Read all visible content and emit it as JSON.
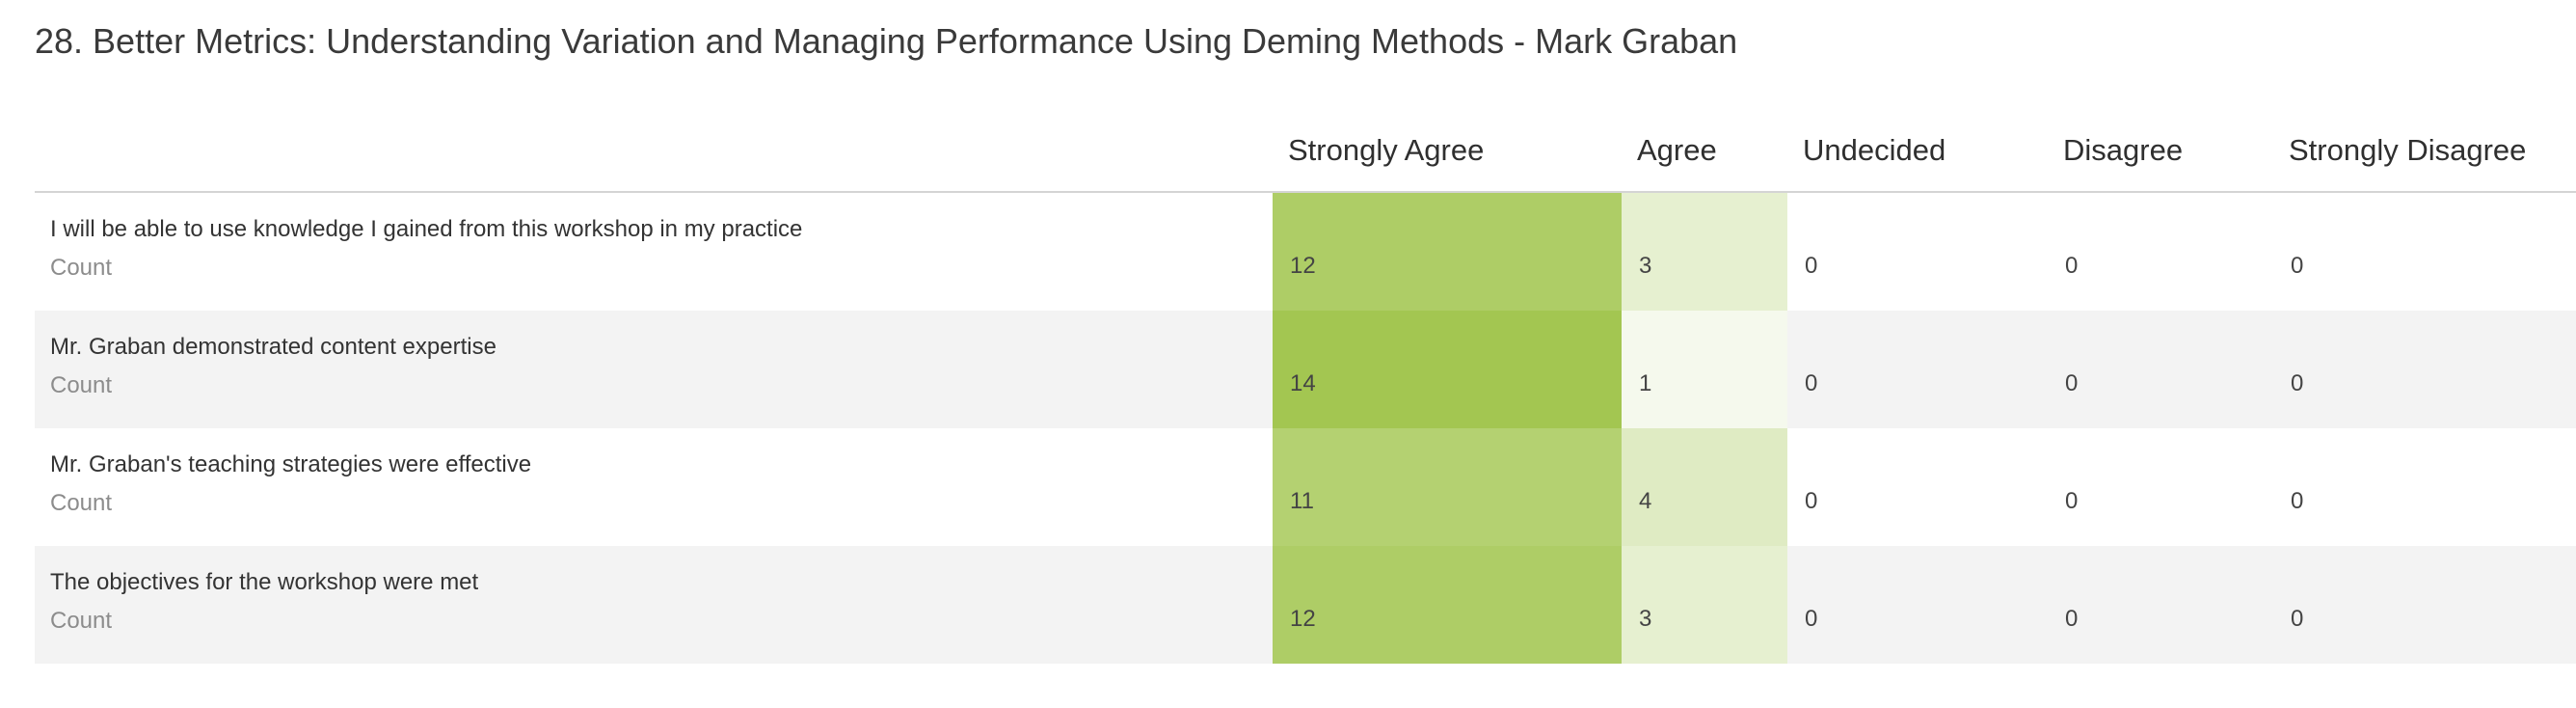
{
  "title": "28. Better Metrics: Understanding Variation and Managing Performance Using Deming Methods  - Mark Graban",
  "colors": {
    "heat_max": "#a3c651",
    "heat_min": "#ffffff"
  },
  "columns": [
    "Strongly Agree",
    "Agree",
    "Undecided",
    "Disagree",
    "Strongly Disagree"
  ],
  "rows": [
    {
      "question": "I will be able to use knowledge I gained from this workshop in my practice",
      "sub_label": "Count",
      "values": [
        12,
        3,
        0,
        0,
        0
      ]
    },
    {
      "question": "Mr. Graban demonstrated content expertise",
      "sub_label": "Count",
      "values": [
        14,
        1,
        0,
        0,
        0
      ]
    },
    {
      "question": "Mr. Graban's teaching strategies were effective",
      "sub_label": "Count",
      "values": [
        11,
        4,
        0,
        0,
        0
      ]
    },
    {
      "question": "The objectives for the workshop were met",
      "sub_label": "Count",
      "values": [
        12,
        3,
        0,
        0,
        0
      ]
    }
  ]
}
